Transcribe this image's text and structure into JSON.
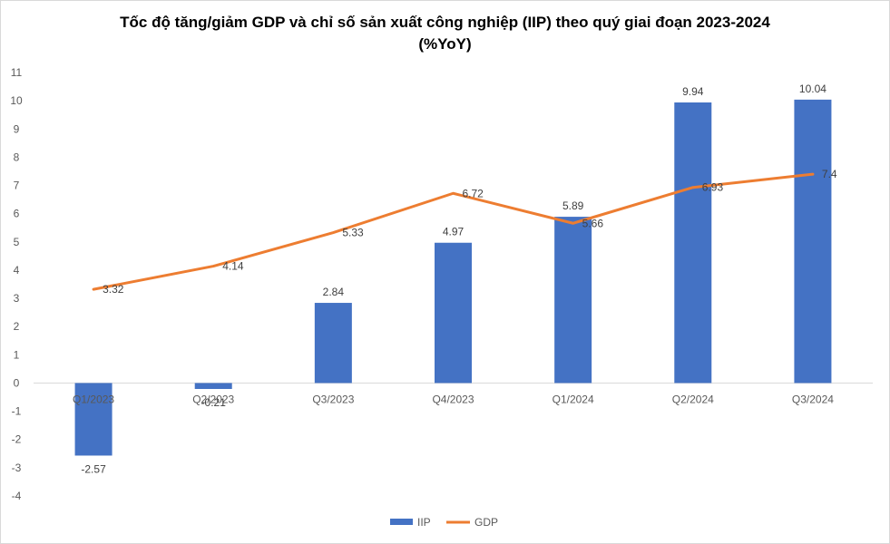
{
  "chart_data": {
    "type": "bar",
    "title": "Tốc độ tăng/giảm GDP và chỉ số sản xuất công nghiệp (IIP) theo quý giai đoạn 2023-2024",
    "subtitle": "(%YoY)",
    "categories": [
      "Q1/2023",
      "Q2/2023",
      "Q3/2023",
      "Q4/2023",
      "Q1/2024",
      "Q2/2024",
      "Q3/2024"
    ],
    "series": [
      {
        "name": "IIP",
        "type": "bar",
        "color": "#4472c4",
        "values": [
          -2.57,
          -0.21,
          2.84,
          4.97,
          5.89,
          9.94,
          10.04
        ],
        "labels": [
          "-2.57",
          "-0.21",
          "2.84",
          "4.97",
          "5.89",
          "9.94",
          "10.04"
        ]
      },
      {
        "name": "GDP",
        "type": "line",
        "color": "#ed7d31",
        "values": [
          3.32,
          4.14,
          5.33,
          6.72,
          5.66,
          6.93,
          7.4
        ],
        "labels": [
          "3.32",
          "4.14",
          "5.33",
          "6.72",
          "5.66",
          "6.93",
          "7.4"
        ]
      }
    ],
    "y_ticks": [
      "11",
      "10",
      "9",
      "8",
      "7",
      "6",
      "5",
      "4",
      "3",
      "2",
      "1",
      "0",
      "-1",
      "-2",
      "-3",
      "-4"
    ],
    "ylim": [
      -4,
      11
    ],
    "grid": false,
    "legend": "bottom"
  }
}
